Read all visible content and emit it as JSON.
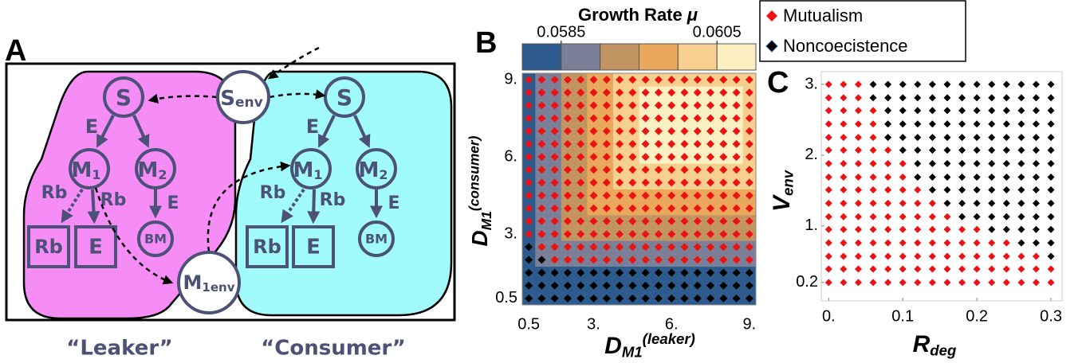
{
  "diagram": {
    "panel": "A",
    "left": {
      "s": "S",
      "e_top": "E",
      "m1": {
        "main": "M",
        "sub": "1"
      },
      "m2": {
        "main": "M",
        "sub": "2"
      },
      "rb_leak": "Rb",
      "rb_in": "Rb",
      "e_right": "E",
      "box_rb": "Rb",
      "box_e": "E",
      "bm": "BM",
      "name": "“Leaker”"
    },
    "right": {
      "s": "S",
      "e_top": "E",
      "m1": {
        "main": "M",
        "sub": "1"
      },
      "m2": {
        "main": "M",
        "sub": "2"
      },
      "rb_leak": "Rb",
      "rb_in": "Rb",
      "e_right": "E",
      "box_rb": "Rb",
      "box_e": "E",
      "bm": "BM",
      "name": "“Consumer”"
    },
    "env": {
      "s_env": {
        "main": "S",
        "sub": "env"
      },
      "m1_env": {
        "main": "M",
        "sub": "1env"
      }
    }
  },
  "chart_data": [
    {
      "type": "heatmap",
      "panel": "B",
      "colorbar": {
        "title": "Growth Rate",
        "symbol": "μ",
        "lim": [
          0.058,
          0.061
        ],
        "ticks": [
          0.0585,
          0.0605
        ],
        "colors": [
          "#2e5b8e",
          "#7b7f98",
          "#c19461",
          "#e9a85b",
          "#f7cf8f",
          "#fcefc2"
        ]
      },
      "xlabel": {
        "main": "D",
        "sub": "M1",
        "sup": "(leaker)"
      },
      "ylabel": {
        "main": "D",
        "sub": "M1",
        "sup": "(consumer)"
      },
      "xlim": [
        0.25,
        9.25
      ],
      "ylim": [
        0.25,
        9.25
      ],
      "xticks": [
        0.5,
        {
          "value": 3,
          "label": "3."
        },
        {
          "value": 6,
          "label": "6."
        },
        {
          "value": 9,
          "label": "9."
        }
      ],
      "yticks": [
        0.5,
        {
          "value": 3,
          "label": "3."
        },
        {
          "value": 6,
          "label": "6."
        },
        {
          "value": 9,
          "label": "9."
        }
      ],
      "x": [
        0.5,
        1,
        1.5,
        2,
        2.5,
        3,
        3.5,
        4,
        4.5,
        5,
        5.5,
        6,
        6.5,
        7,
        7.5,
        8,
        8.5,
        9
      ],
      "y": [
        0.5,
        1,
        1.5,
        2,
        2.5,
        3,
        3.5,
        4,
        4.5,
        5,
        5.5,
        6,
        6.5,
        7,
        7.5,
        8,
        8.5,
        9
      ],
      "series": [
        {
          "name": "Mutualism",
          "color": "#ee1111"
        },
        {
          "name": "Noncoecistence",
          "color": "#000000"
        }
      ],
      "z": [
        [
          0.0582,
          0.0582,
          0.0582,
          0.0582,
          0.0582,
          0.0582,
          0.0582,
          0.0582,
          0.0582,
          0.0582,
          0.0582,
          0.0582,
          0.0582,
          0.0582,
          0.0582,
          0.0582,
          0.0582,
          0.0582
        ],
        [
          0.0582,
          0.0582,
          0.0582,
          0.0582,
          0.0582,
          0.0582,
          0.0582,
          0.0582,
          0.0582,
          0.0582,
          0.0582,
          0.0582,
          0.0582,
          0.0582,
          0.0582,
          0.0582,
          0.0582,
          0.0582
        ],
        [
          0.0582,
          0.0582,
          0.0582,
          0.0582,
          0.0582,
          0.0582,
          0.0582,
          0.0582,
          0.0582,
          0.0582,
          0.0582,
          0.0582,
          0.0582,
          0.0582,
          0.0582,
          0.0582,
          0.0582,
          0.0582
        ],
        [
          0.0582,
          0.0587,
          0.0587,
          0.0587,
          0.0587,
          0.0587,
          0.0587,
          0.0587,
          0.0587,
          0.0587,
          0.0587,
          0.0587,
          0.0587,
          0.0587,
          0.0587,
          0.0587,
          0.0587,
          0.0587
        ],
        [
          0.0582,
          0.0587,
          0.0587,
          0.0587,
          0.0587,
          0.0587,
          0.0587,
          0.0587,
          0.0587,
          0.0587,
          0.0587,
          0.0587,
          0.0587,
          0.0587,
          0.0587,
          0.0587,
          0.0587,
          0.0587
        ],
        [
          0.0582,
          0.0587,
          0.0587,
          0.0592,
          0.0592,
          0.0592,
          0.0592,
          0.0592,
          0.0592,
          0.0592,
          0.0592,
          0.0592,
          0.0592,
          0.0592,
          0.0592,
          0.0592,
          0.0592,
          0.0592
        ],
        [
          0.0582,
          0.0587,
          0.0587,
          0.0592,
          0.0592,
          0.0592,
          0.0592,
          0.0592,
          0.0592,
          0.0592,
          0.0592,
          0.0592,
          0.0592,
          0.0592,
          0.0592,
          0.0592,
          0.0592,
          0.0592
        ],
        [
          0.0582,
          0.0587,
          0.0587,
          0.0592,
          0.0592,
          0.0597,
          0.0597,
          0.0597,
          0.0597,
          0.0597,
          0.0597,
          0.0597,
          0.0597,
          0.0597,
          0.0597,
          0.0597,
          0.0597,
          0.0597
        ],
        [
          0.0582,
          0.0587,
          0.0587,
          0.0592,
          0.0592,
          0.0597,
          0.0597,
          0.0597,
          0.0597,
          0.0597,
          0.0597,
          0.0597,
          0.0597,
          0.0597,
          0.0597,
          0.0597,
          0.0597,
          0.0597
        ],
        [
          0.0582,
          0.0587,
          0.0587,
          0.0592,
          0.0592,
          0.0597,
          0.0597,
          0.0602,
          0.0602,
          0.0602,
          0.0602,
          0.0602,
          0.0602,
          0.0602,
          0.0602,
          0.0602,
          0.0602,
          0.0602
        ],
        [
          0.0582,
          0.0587,
          0.0587,
          0.0592,
          0.0592,
          0.0597,
          0.0597,
          0.0602,
          0.0602,
          0.0602,
          0.0602,
          0.0602,
          0.0602,
          0.0602,
          0.0602,
          0.0602,
          0.0602,
          0.0602
        ],
        [
          0.0582,
          0.0587,
          0.0587,
          0.0592,
          0.0592,
          0.0597,
          0.0597,
          0.0602,
          0.0602,
          0.0607,
          0.0607,
          0.0607,
          0.0607,
          0.0607,
          0.0607,
          0.0607,
          0.0607,
          0.0602
        ],
        [
          0.0582,
          0.0587,
          0.0587,
          0.0592,
          0.0592,
          0.0597,
          0.0597,
          0.0602,
          0.0602,
          0.0607,
          0.0607,
          0.0607,
          0.0607,
          0.0607,
          0.0607,
          0.0607,
          0.0607,
          0.0602
        ],
        [
          0.0582,
          0.0587,
          0.0587,
          0.0592,
          0.0592,
          0.0597,
          0.0597,
          0.0602,
          0.0602,
          0.0607,
          0.0607,
          0.0607,
          0.0607,
          0.0607,
          0.0607,
          0.0607,
          0.0607,
          0.0602
        ],
        [
          0.0582,
          0.0587,
          0.0587,
          0.0592,
          0.0592,
          0.0597,
          0.0597,
          0.0602,
          0.0602,
          0.0607,
          0.0607,
          0.0607,
          0.0607,
          0.0607,
          0.0607,
          0.0607,
          0.0607,
          0.0602
        ],
        [
          0.0582,
          0.0587,
          0.0587,
          0.0592,
          0.0592,
          0.0597,
          0.0597,
          0.0602,
          0.0602,
          0.0607,
          0.0607,
          0.0607,
          0.0607,
          0.0607,
          0.0607,
          0.0607,
          0.0607,
          0.0602
        ],
        [
          0.0582,
          0.0587,
          0.0587,
          0.0592,
          0.0592,
          0.0597,
          0.0597,
          0.0602,
          0.0602,
          0.0607,
          0.0607,
          0.0607,
          0.0607,
          0.0607,
          0.0607,
          0.0607,
          0.0607,
          0.0602
        ],
        [
          0.0582,
          0.0587,
          0.0587,
          0.0592,
          0.0592,
          0.0597,
          0.0597,
          0.0602,
          0.0602,
          0.0602,
          0.0602,
          0.0602,
          0.0602,
          0.0602,
          0.0602,
          0.0602,
          0.0602,
          0.0602
        ]
      ],
      "outcome": [
        [
          1,
          1,
          1,
          1,
          1,
          1,
          1,
          1,
          1,
          1,
          1,
          1,
          1,
          1,
          1,
          1,
          1,
          1
        ],
        [
          1,
          1,
          1,
          1,
          1,
          1,
          1,
          1,
          1,
          1,
          1,
          1,
          1,
          1,
          1,
          1,
          1,
          1
        ],
        [
          1,
          1,
          1,
          1,
          1,
          1,
          1,
          1,
          1,
          1,
          1,
          1,
          1,
          1,
          1,
          1,
          1,
          1
        ],
        [
          1,
          1,
          0,
          0,
          0,
          0,
          0,
          0,
          0,
          0,
          0,
          0,
          0,
          0,
          0,
          0,
          0,
          0
        ],
        [
          1,
          0,
          0,
          0,
          0,
          0,
          0,
          0,
          0,
          0,
          0,
          0,
          0,
          0,
          0,
          0,
          0,
          0
        ],
        [
          0,
          0,
          0,
          0,
          0,
          0,
          0,
          0,
          0,
          0,
          0,
          0,
          0,
          0,
          0,
          0,
          0,
          0
        ],
        [
          0,
          0,
          0,
          0,
          0,
          0,
          0,
          0,
          0,
          0,
          0,
          0,
          0,
          0,
          0,
          0,
          0,
          0
        ],
        [
          0,
          0,
          0,
          0,
          0,
          0,
          0,
          0,
          0,
          0,
          0,
          0,
          0,
          0,
          0,
          0,
          0,
          0
        ],
        [
          0,
          0,
          0,
          0,
          0,
          0,
          0,
          0,
          0,
          0,
          0,
          0,
          0,
          0,
          0,
          0,
          0,
          0
        ],
        [
          0,
          0,
          0,
          0,
          0,
          0,
          0,
          0,
          0,
          0,
          0,
          0,
          0,
          0,
          0,
          0,
          0,
          0
        ],
        [
          0,
          0,
          0,
          0,
          0,
          0,
          0,
          0,
          0,
          0,
          0,
          0,
          0,
          0,
          0,
          0,
          0,
          0
        ],
        [
          0,
          0,
          0,
          0,
          0,
          0,
          0,
          0,
          0,
          0,
          0,
          0,
          0,
          0,
          0,
          0,
          0,
          0
        ],
        [
          0,
          0,
          0,
          0,
          0,
          0,
          0,
          0,
          0,
          0,
          0,
          0,
          0,
          0,
          0,
          0,
          0,
          0
        ],
        [
          0,
          0,
          0,
          0,
          0,
          0,
          0,
          0,
          0,
          0,
          0,
          0,
          0,
          0,
          0,
          0,
          0,
          0
        ],
        [
          0,
          0,
          0,
          0,
          0,
          0,
          0,
          0,
          0,
          0,
          0,
          0,
          0,
          0,
          0,
          0,
          0,
          0
        ],
        [
          0,
          0,
          0,
          0,
          0,
          0,
          0,
          0,
          0,
          0,
          0,
          0,
          0,
          0,
          0,
          0,
          0,
          0
        ],
        [
          0,
          0,
          0,
          0,
          0,
          0,
          0,
          0,
          0,
          0,
          0,
          0,
          0,
          0,
          0,
          0,
          0,
          0
        ],
        [
          0,
          0,
          0,
          0,
          0,
          0,
          0,
          0,
          0,
          0,
          0,
          0,
          0,
          0,
          0,
          0,
          0,
          0
        ]
      ]
    },
    {
      "type": "scatter",
      "panel": "C",
      "xlabel": {
        "main": "R",
        "sub": "deg"
      },
      "ylabel": {
        "main": "V",
        "sub": "env"
      },
      "xlim": [
        -0.01,
        0.315
      ],
      "ylim": [
        -0.06,
        3.18
      ],
      "xticks": [
        {
          "value": 0,
          "label": "0."
        },
        0.1,
        0.2,
        0.3
      ],
      "yticks": [
        0.2,
        {
          "value": 1,
          "label": "1."
        },
        {
          "value": 2,
          "label": "2."
        },
        {
          "value": 3,
          "label": "3."
        }
      ],
      "x": [
        0,
        0.02,
        0.04,
        0.06,
        0.08,
        0.1,
        0.12,
        0.14,
        0.16,
        0.18,
        0.2,
        0.22,
        0.24,
        0.26,
        0.28,
        0.3
      ],
      "y": [
        0.2,
        0.39,
        0.57,
        0.76,
        0.95,
        1.13,
        1.32,
        1.51,
        1.69,
        1.88,
        2.07,
        2.25,
        2.44,
        2.63,
        2.81,
        3.0
      ],
      "outcome": [
        [
          0,
          0,
          0,
          0,
          0,
          0,
          0,
          0,
          0,
          0,
          0,
          0,
          0,
          0,
          0,
          0
        ],
        [
          0,
          0,
          0,
          0,
          0,
          0,
          0,
          0,
          0,
          0,
          0,
          0,
          0,
          0,
          0,
          0
        ],
        [
          0,
          0,
          0,
          0,
          0,
          0,
          0,
          0,
          0,
          0,
          0,
          0,
          0,
          0,
          0,
          1
        ],
        [
          0,
          0,
          0,
          0,
          0,
          0,
          0,
          0,
          0,
          0,
          0,
          0,
          0,
          1,
          1,
          1
        ],
        [
          0,
          0,
          0,
          0,
          0,
          0,
          0,
          0,
          0,
          0,
          0,
          1,
          1,
          1,
          1,
          1
        ],
        [
          0,
          0,
          0,
          0,
          0,
          0,
          0,
          0,
          0,
          1,
          1,
          1,
          1,
          1,
          1,
          1
        ],
        [
          0,
          0,
          0,
          0,
          0,
          0,
          0,
          0,
          1,
          1,
          1,
          1,
          1,
          1,
          1,
          1
        ],
        [
          0,
          0,
          0,
          0,
          0,
          0,
          0,
          1,
          1,
          1,
          1,
          1,
          1,
          1,
          1,
          1
        ],
        [
          0,
          0,
          0,
          0,
          0,
          0,
          1,
          1,
          1,
          1,
          1,
          1,
          1,
          1,
          1,
          1
        ],
        [
          0,
          0,
          0,
          0,
          0,
          0,
          1,
          1,
          1,
          1,
          1,
          1,
          1,
          1,
          1,
          1
        ],
        [
          0,
          0,
          0,
          0,
          0,
          1,
          1,
          1,
          1,
          1,
          1,
          1,
          1,
          1,
          1,
          1
        ],
        [
          0,
          0,
          0,
          0,
          1,
          1,
          1,
          1,
          1,
          1,
          1,
          1,
          1,
          1,
          1,
          1
        ],
        [
          0,
          0,
          0,
          0,
          1,
          1,
          1,
          1,
          1,
          1,
          1,
          1,
          1,
          1,
          1,
          1
        ],
        [
          0,
          0,
          0,
          0,
          1,
          1,
          1,
          1,
          1,
          1,
          1,
          1,
          1,
          1,
          1,
          1
        ],
        [
          0,
          0,
          0,
          1,
          1,
          1,
          1,
          1,
          1,
          1,
          1,
          1,
          1,
          1,
          1,
          1
        ],
        [
          0,
          0,
          0,
          1,
          1,
          1,
          1,
          1,
          1,
          1,
          1,
          1,
          1,
          1,
          1,
          1
        ]
      ]
    }
  ]
}
